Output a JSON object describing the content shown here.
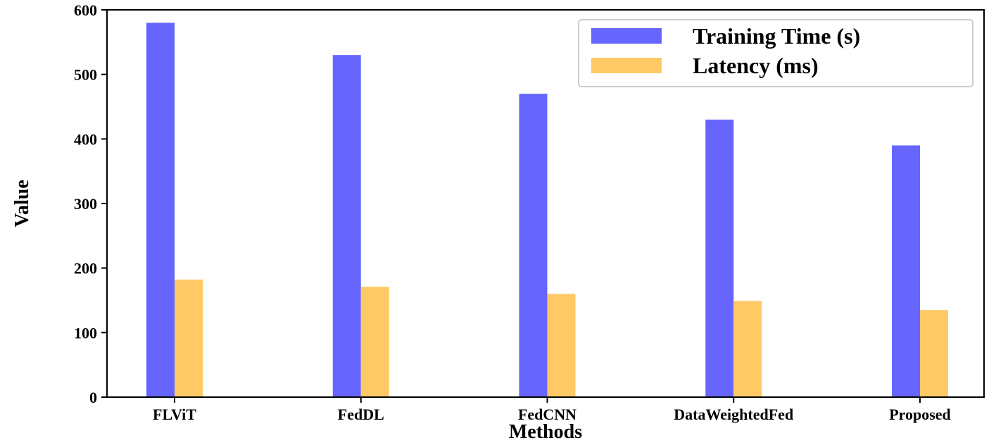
{
  "chart_data": {
    "type": "bar",
    "title": "",
    "xlabel": "Methods",
    "ylabel": "Value",
    "categories": [
      "FLViT",
      "FedDL",
      "FedCNN",
      "DataWeightedFed",
      "Proposed"
    ],
    "series": [
      {
        "name": "Training Time (s)",
        "color": "#6666ff",
        "values": [
          580,
          530,
          470,
          430,
          390
        ]
      },
      {
        "name": "Latency (ms)",
        "color": "#ffc966",
        "values": [
          182,
          171,
          160,
          149,
          135
        ]
      }
    ],
    "ylim": [
      0,
      600
    ],
    "yticks": [
      0,
      100,
      200,
      300,
      400,
      500,
      600
    ],
    "grid": false,
    "legend_position": "top-right"
  }
}
